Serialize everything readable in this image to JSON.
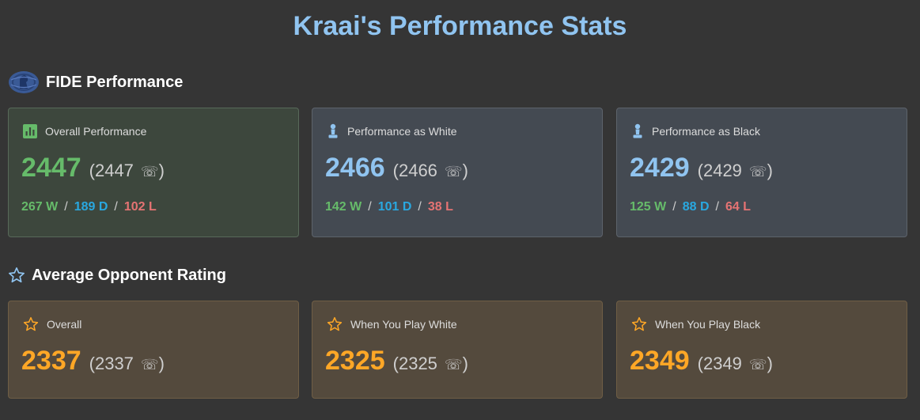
{
  "page": {
    "title": "Kraai's Performance Stats"
  },
  "fide_section": {
    "title": "FIDE Performance",
    "icon": "fide-logo-icon",
    "cards": [
      {
        "label": "Overall Performance",
        "icon": "bar-chart-icon",
        "icon_color": "#66bb6a",
        "value": "2447",
        "paren_value": "2447",
        "wins": "267 W",
        "draws": "189 D",
        "losses": "102 L"
      },
      {
        "label": "Performance as White",
        "icon": "pawn-icon",
        "icon_color": "#90c4f0",
        "value": "2466",
        "paren_value": "2466",
        "wins": "142 W",
        "draws": "101 D",
        "losses": "38 L"
      },
      {
        "label": "Performance as Black",
        "icon": "pawn-icon",
        "icon_color": "#90c4f0",
        "value": "2429",
        "paren_value": "2429",
        "wins": "125 W",
        "draws": "88 D",
        "losses": "64 L"
      }
    ]
  },
  "opponent_section": {
    "title": "Average Opponent Rating",
    "icon": "star-outline-icon",
    "cards": [
      {
        "label": "Overall",
        "icon": "star-outline-icon",
        "icon_color": "#ffa726",
        "value": "2337",
        "paren_value": "2337"
      },
      {
        "label": "When You Play White",
        "icon": "star-outline-icon",
        "icon_color": "#ffa726",
        "value": "2325",
        "paren_value": "2325"
      },
      {
        "label": "When You Play Black",
        "icon": "star-outline-icon",
        "icon_color": "#ffa726",
        "value": "2349",
        "paren_value": "2349"
      }
    ]
  },
  "symbols": {
    "open_paren": "(",
    "close_paren": ")",
    "phone_glyph": "☏",
    "separator": "/"
  },
  "colors": {
    "background": "#353535",
    "title": "#90c4f0",
    "win": "#66bb6a",
    "draw": "#29a8e0",
    "loss": "#e57373",
    "orange": "#ffa726"
  }
}
